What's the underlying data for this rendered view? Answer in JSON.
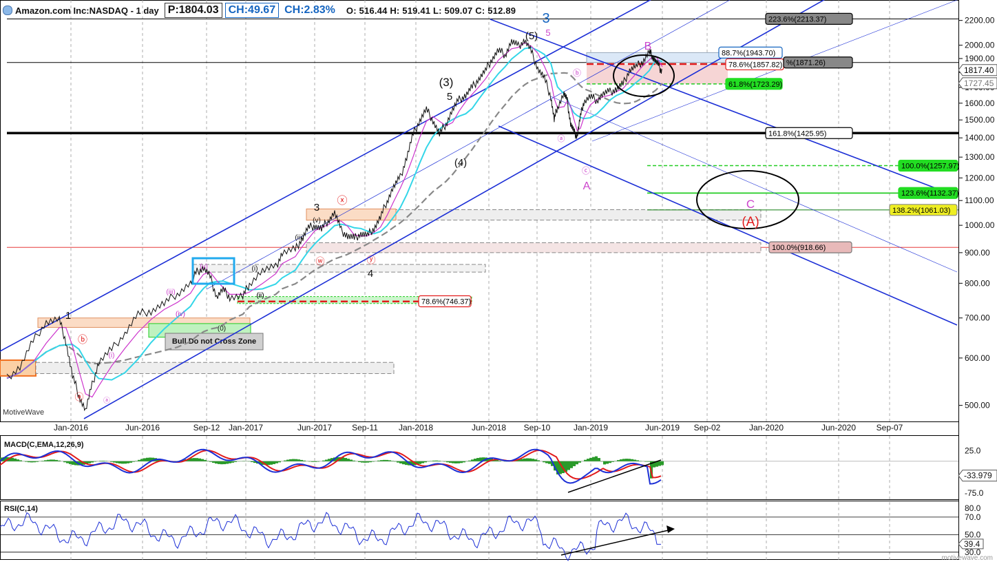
{
  "header": {
    "ticker": "Amazon.com Inc:NASDAQ - 1 day",
    "price_box": "P:1804.03",
    "change_box": "CH:49.67",
    "change_pct": "CH:2.83%",
    "ohlc": "O: 516.44  H: 519.41  L: 509.07  C: 512.89"
  },
  "colors": {
    "channel": "#1c2fd6",
    "fib_green": "#22cc22",
    "fib_red": "#e21b1b",
    "fib_gray": "#888888",
    "ma_cyan": "#33d6e8",
    "ma_magenta": "#cc33cc",
    "ma_gray": "#888888",
    "wave_purple": "#cc44cc",
    "wave_red": "#e21b1b"
  },
  "watermark": "motivewave.com",
  "motive_label": "MotiveWave",
  "zone_label": "Bull Do not Cross Zone",
  "macd_label": "MACD(C,EMA,12,26,9)",
  "rsi_label": "RSI(C,14)",
  "chart_data": {
    "type": "line",
    "title": "Amazon.com Inc:NASDAQ - 1 day",
    "yscale": "log",
    "ylim": [
      470,
      2380
    ],
    "x_tick_labels": [
      "Jan-2016",
      "Jun-2016",
      "Sep-12",
      "Jan-2017",
      "Jun-2017",
      "Sep-11",
      "Jan-2018",
      "Jun-2018",
      "Sep-10",
      "Jan-2019",
      "Jun-2019",
      "Sep-02",
      "Jan-2020",
      "Jun-2020",
      "Sep-07"
    ],
    "y_ticks": [
      500,
      600,
      700,
      800,
      900,
      1000,
      1100,
      1200,
      1300,
      1400,
      1500,
      1600,
      1700,
      1800,
      1900,
      2000,
      2200
    ],
    "y_tick_labels": [
      "500.00",
      "600.00",
      "700.00",
      "800.00",
      "900.00",
      "1000.00",
      "1100.00",
      "1200.00",
      "1300.00",
      "1400.00",
      "1500.00",
      "1600.00",
      "1700.00",
      "1800.00",
      "1900.00",
      "2000.00",
      "2200.00"
    ],
    "price_path": [
      [
        0,
        555
      ],
      [
        0.02,
        580
      ],
      [
        0.04,
        640
      ],
      [
        0.06,
        690
      ],
      [
        0.08,
        695
      ],
      [
        0.09,
        640
      ],
      [
        0.1,
        560
      ],
      [
        0.11,
        520
      ],
      [
        0.12,
        490
      ],
      [
        0.13,
        540
      ],
      [
        0.14,
        590
      ],
      [
        0.16,
        620
      ],
      [
        0.18,
        660
      ],
      [
        0.2,
        710
      ],
      [
        0.22,
        720
      ],
      [
        0.24,
        740
      ],
      [
        0.26,
        770
      ],
      [
        0.28,
        800
      ],
      [
        0.29,
        835
      ],
      [
        0.3,
        850
      ],
      [
        0.31,
        820
      ],
      [
        0.32,
        760
      ],
      [
        0.33,
        780
      ],
      [
        0.34,
        760
      ],
      [
        0.36,
        760
      ],
      [
        0.37,
        800
      ],
      [
        0.39,
        840
      ],
      [
        0.41,
        850
      ],
      [
        0.42,
        900
      ],
      [
        0.44,
        910
      ],
      [
        0.45,
        950
      ],
      [
        0.46,
        990
      ],
      [
        0.47,
        1000
      ],
      [
        0.48,
        985
      ],
      [
        0.49,
        1020
      ],
      [
        0.5,
        1050
      ],
      [
        0.51,
        980
      ],
      [
        0.52,
        960
      ],
      [
        0.53,
        950
      ],
      [
        0.54,
        970
      ],
      [
        0.55,
        960
      ],
      [
        0.56,
        990
      ],
      [
        0.57,
        1030
      ],
      [
        0.58,
        1100
      ],
      [
        0.59,
        1160
      ],
      [
        0.6,
        1200
      ],
      [
        0.61,
        1300
      ],
      [
        0.62,
        1420
      ],
      [
        0.63,
        1500
      ],
      [
        0.64,
        1560
      ],
      [
        0.65,
        1500
      ],
      [
        0.66,
        1420
      ],
      [
        0.67,
        1480
      ],
      [
        0.68,
        1560
      ],
      [
        0.69,
        1620
      ],
      [
        0.7,
        1650
      ],
      [
        0.71,
        1700
      ],
      [
        0.72,
        1760
      ],
      [
        0.73,
        1810
      ],
      [
        0.74,
        1900
      ],
      [
        0.75,
        1960
      ],
      [
        0.76,
        1930
      ],
      [
        0.77,
        2030
      ],
      [
        0.78,
        1990
      ],
      [
        0.79,
        2040
      ],
      [
        0.8,
        1950
      ],
      [
        0.81,
        1830
      ],
      [
        0.82,
        1760
      ],
      [
        0.83,
        1640
      ],
      [
        0.835,
        1500
      ],
      [
        0.84,
        1580
      ],
      [
        0.85,
        1660
      ],
      [
        0.855,
        1610
      ],
      [
        0.86,
        1480
      ],
      [
        0.865,
        1430
      ],
      [
        0.87,
        1410
      ],
      [
        0.875,
        1520
      ],
      [
        0.88,
        1610
      ],
      [
        0.89,
        1640
      ],
      [
        0.9,
        1620
      ],
      [
        0.91,
        1660
      ],
      [
        0.92,
        1670
      ],
      [
        0.93,
        1690
      ],
      [
        0.94,
        1720
      ],
      [
        0.95,
        1820
      ],
      [
        0.96,
        1840
      ],
      [
        0.97,
        1880
      ],
      [
        0.98,
        1950
      ],
      [
        0.985,
        1920
      ],
      [
        0.99,
        1880
      ],
      [
        0.995,
        1840
      ],
      [
        1.0,
        1804
      ]
    ],
    "fib_levels": [
      {
        "label": "223.6%(2213.37)",
        "value": 2213.37
      },
      {
        "label": "88.7%(1943.70)",
        "value": 1943.7
      },
      {
        "label": "78.6%(1857.82)",
        "value": 1857.82
      },
      {
        "label": "0%(1871.26)",
        "value": 1871.26
      },
      {
        "label": "61.8%(1723.29)",
        "value": 1723.29
      },
      {
        "label": "161.8%(1425.95)",
        "value": 1425.95
      },
      {
        "label": "100.0%(1257.97)",
        "value": 1257.97
      },
      {
        "label": "123.6%(1132.37)",
        "value": 1132.37
      },
      {
        "label": "138.2%(1061.03)",
        "value": 1061.03
      },
      {
        "label": "100.0%(918.66)",
        "value": 918.66
      },
      {
        "label": "78.6%(746.37)",
        "value": 746.37
      }
    ],
    "price_markers": [
      {
        "label": "1817.40",
        "value": 1817.4
      },
      {
        "label": "1727.45",
        "value": 1727.45
      }
    ],
    "wave_labels": [
      "1",
      "ⓑ",
      "ⓐ",
      "(i)",
      "(ii)",
      "(iii)",
      "(iv)",
      "(v)",
      "(0)",
      "ⓐ",
      "3",
      "ⓧ",
      "ⓦ",
      "ⓨ",
      "4",
      "(i)",
      "(ii)",
      "(iii)",
      "(iv)",
      "(v)",
      "(3)",
      "5",
      "(4)",
      "(5)",
      "5",
      "3",
      "ⓑ",
      "ⓐ",
      "ⓒ",
      "A",
      "B",
      "C",
      "(A)"
    ],
    "macd": {
      "label": "MACD(C,EMA,12,26,9)",
      "ticks": [
        "25.0",
        "-75.0"
      ],
      "current": "-33.979",
      "ylim": [
        -90,
        60
      ]
    },
    "rsi": {
      "label": "RSI(C,14)",
      "ticks": [
        "80.0",
        "70.0",
        "50.0",
        "30.0"
      ],
      "current": "39.4",
      "ylim": [
        22,
        88
      ]
    }
  }
}
